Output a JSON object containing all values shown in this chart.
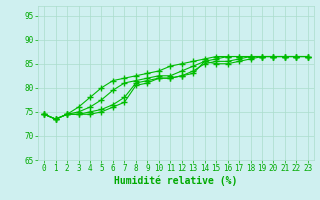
{
  "xlabel": "Humidité relative (%)",
  "xlim": [
    -0.5,
    23.5
  ],
  "ylim": [
    65,
    97
  ],
  "yticks": [
    65,
    70,
    75,
    80,
    85,
    90,
    95
  ],
  "xticks": [
    0,
    1,
    2,
    3,
    4,
    5,
    6,
    7,
    8,
    9,
    10,
    11,
    12,
    13,
    14,
    15,
    16,
    17,
    18,
    19,
    20,
    21,
    22,
    23
  ],
  "background_color": "#cff0f0",
  "grid_color": "#aaddcc",
  "line_color": "#00bb00",
  "series": [
    [
      74.5,
      73.5,
      74.5,
      74.5,
      74.5,
      75.0,
      76.0,
      77.0,
      80.5,
      81.0,
      82.0,
      82.0,
      82.5,
      83.0,
      85.5,
      85.0,
      85.0,
      85.5,
      86.0,
      86.5,
      86.5,
      86.5,
      86.5,
      86.5
    ],
    [
      74.5,
      73.5,
      74.5,
      74.5,
      75.0,
      75.5,
      76.5,
      78.0,
      81.0,
      81.5,
      82.0,
      82.0,
      82.5,
      83.5,
      85.0,
      85.5,
      85.5,
      86.0,
      86.5,
      86.5,
      86.5,
      86.5,
      86.5,
      86.5
    ],
    [
      74.5,
      73.5,
      74.5,
      75.0,
      76.0,
      77.5,
      79.5,
      81.0,
      81.5,
      82.0,
      82.5,
      82.5,
      83.5,
      84.5,
      85.5,
      86.0,
      86.5,
      86.5,
      86.5,
      86.5,
      86.5,
      86.5,
      86.5,
      86.5
    ],
    [
      74.5,
      73.5,
      74.5,
      76.0,
      78.0,
      80.0,
      81.5,
      82.0,
      82.5,
      83.0,
      83.5,
      84.5,
      85.0,
      85.5,
      86.0,
      86.5,
      86.5,
      86.5,
      86.5,
      86.5,
      86.5,
      86.5,
      86.5,
      86.5
    ]
  ],
  "marker": "+",
  "marker_size": 4,
  "marker_linewidth": 1.0,
  "line_width": 0.8,
  "font_color": "#00aa00",
  "tick_fontsize": 5.5,
  "xlabel_fontsize": 7,
  "xlabel_fontweight": "bold"
}
